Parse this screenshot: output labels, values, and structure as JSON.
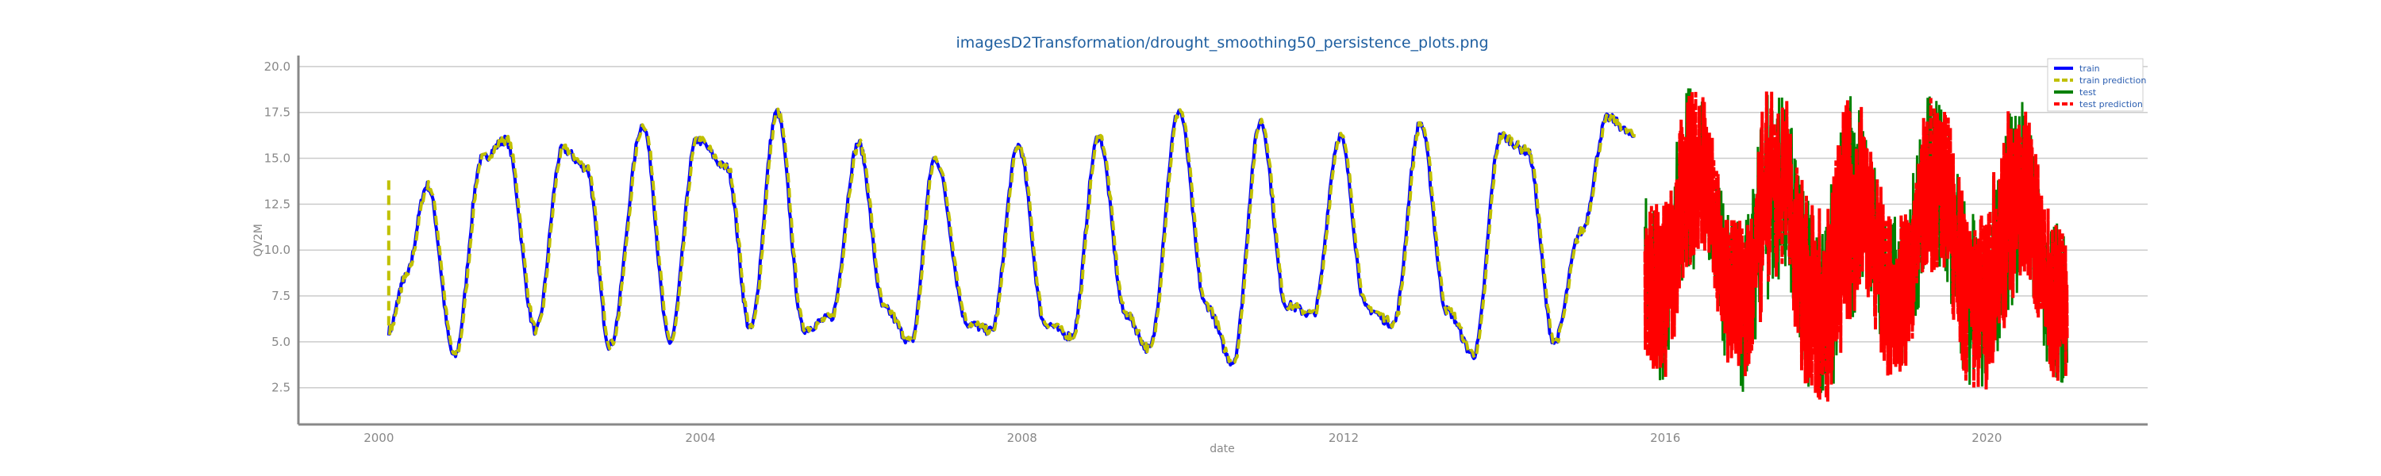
{
  "chart_data": {
    "type": "line",
    "title": "imagesD2Transformation/drought_smoothing50_persistence_plots.png",
    "xlabel": "date",
    "ylabel": "QV2M",
    "xlim": [
      "1999-01-01",
      "2022-01-01"
    ],
    "ylim": [
      0.5,
      20.6
    ],
    "x_ticks": [
      "2000",
      "2004",
      "2008",
      "2012",
      "2016",
      "2020"
    ],
    "y_ticks": [
      "2.5",
      "5.0",
      "7.5",
      "10.0",
      "12.5",
      "15.0",
      "17.5",
      "20.0"
    ],
    "grid": "horizontal",
    "legend_position": "top-right",
    "colors": {
      "train": "#0000ff",
      "train_prediction": "#c0c000",
      "test": "#008000",
      "test_prediction": "#ff0000"
    },
    "series": [
      {
        "name": "train",
        "style": "solid",
        "dates": [
          "2000-02-15",
          "2000-05-01",
          "2000-08-10",
          "2000-12-10",
          "2001-04-15",
          "2001-08-01",
          "2001-12-15",
          "2002-04-15",
          "2002-08-01",
          "2002-11-15",
          "2003-04-15",
          "2003-08-15",
          "2003-12-15",
          "2004-05-01",
          "2004-08-15",
          "2004-12-15",
          "2005-04-15",
          "2005-08-15",
          "2005-12-20",
          "2006-04-15",
          "2006-08-15",
          "2006-12-01",
          "2007-05-01",
          "2007-08-15",
          "2007-12-15",
          "2008-04-15",
          "2008-08-15",
          "2008-12-15",
          "2009-04-15",
          "2009-08-01",
          "2009-12-15",
          "2010-04-15",
          "2010-08-15",
          "2010-12-20",
          "2011-04-15",
          "2011-08-15",
          "2011-12-15",
          "2012-04-15",
          "2012-08-15",
          "2012-12-15",
          "2013-04-15",
          "2013-08-15",
          "2013-12-15",
          "2014-04-15",
          "2014-08-15",
          "2014-12-15",
          "2015-04-15",
          "2015-08-15"
        ],
        "values": [
          5.6,
          8.5,
          13.5,
          4.2,
          15,
          16,
          5.6,
          15.5,
          14.5,
          4.8,
          16.8,
          5.0,
          16.0,
          14.5,
          5.7,
          17.5,
          5.7,
          6.3,
          15.8,
          6.8,
          5.0,
          15.0,
          6.0,
          5.6,
          15.7,
          6.0,
          5.3,
          16.2,
          6.5,
          4.6,
          17.6,
          7.0,
          3.9,
          17.0,
          7.0,
          6.5,
          16.2,
          6.8,
          6.0,
          16.9,
          6.7,
          4.3,
          16.2,
          15.4,
          5.0,
          11.0,
          17.2,
          16.2
        ]
      },
      {
        "name": "train prediction",
        "style": "dashed",
        "dates": [
          "2000-02-15",
          "2000-02-15",
          "2000-05-01",
          "2000-08-10",
          "2000-12-10",
          "2001-04-15",
          "2001-08-01",
          "2001-12-15",
          "2002-04-15",
          "2002-08-01",
          "2002-11-15",
          "2003-04-15",
          "2003-08-15",
          "2003-12-15",
          "2004-05-01",
          "2004-08-15",
          "2004-12-15",
          "2005-04-15",
          "2005-08-15",
          "2005-12-20",
          "2006-04-15",
          "2006-08-15",
          "2006-12-01",
          "2007-05-01",
          "2007-08-15",
          "2007-12-15",
          "2008-04-15",
          "2008-08-15",
          "2008-12-15",
          "2009-04-15",
          "2009-08-01",
          "2009-12-15",
          "2010-04-15",
          "2010-08-15",
          "2010-12-20",
          "2011-04-15",
          "2011-08-15",
          "2011-12-15",
          "2012-04-15",
          "2012-08-15",
          "2012-12-15",
          "2013-04-15",
          "2013-08-15",
          "2013-12-15",
          "2014-04-15",
          "2014-08-15",
          "2014-12-15",
          "2015-04-15",
          "2015-08-15"
        ],
        "values": [
          13.8,
          5.6,
          8.5,
          13.5,
          4.2,
          15,
          16,
          5.6,
          15.5,
          14.5,
          4.8,
          16.8,
          5.0,
          16.0,
          14.5,
          5.7,
          17.5,
          5.7,
          6.3,
          15.8,
          6.8,
          5.0,
          15.0,
          6.0,
          5.6,
          15.7,
          6.0,
          5.3,
          16.2,
          6.5,
          4.6,
          17.6,
          7.0,
          3.9,
          17.0,
          7.0,
          6.5,
          16.2,
          6.8,
          6.0,
          16.9,
          6.7,
          4.3,
          16.2,
          15.4,
          5.0,
          11.0,
          17.2,
          16.2
        ]
      },
      {
        "name": "test",
        "style": "solid",
        "start": "2015-10-01",
        "end": "2021-01-01",
        "envelope_dates": [
          "2015-10-01",
          "2016-01-01",
          "2016-04-01",
          "2016-07-01",
          "2016-10-01",
          "2017-01-01",
          "2017-04-01",
          "2017-07-01",
          "2017-10-01",
          "2018-01-01",
          "2018-04-01",
          "2018-07-01",
          "2018-10-01",
          "2019-01-01",
          "2019-04-01",
          "2019-07-01",
          "2019-10-01",
          "2020-01-01",
          "2020-04-01",
          "2020-07-01",
          "2020-10-01",
          "2021-01-01"
        ],
        "envelope_low": [
          4.0,
          2.5,
          8.0,
          10.0,
          4.0,
          2.0,
          7.0,
          9.0,
          2.0,
          1.2,
          5.0,
          8.0,
          3.0,
          3.5,
          9.0,
          8.0,
          2.5,
          2.3,
          6.0,
          9.0,
          3.5,
          2.0
        ],
        "envelope_high": [
          13.0,
          12.5,
          19.0,
          18.5,
          12.0,
          11.5,
          19.0,
          18.5,
          13.0,
          12.0,
          18.5,
          18.0,
          12.0,
          12.5,
          18.5,
          18.0,
          12.0,
          12.0,
          18.5,
          18.0,
          12.5,
          10.5
        ]
      },
      {
        "name": "test prediction",
        "style": "dashed",
        "start": "2015-10-01",
        "end": "2021-01-01",
        "envelope_dates": [
          "2015-10-01",
          "2016-01-01",
          "2016-04-01",
          "2016-07-01",
          "2016-10-01",
          "2017-01-01",
          "2017-04-01",
          "2017-07-01",
          "2017-10-01",
          "2018-01-01",
          "2018-04-01",
          "2018-07-01",
          "2018-10-01",
          "2019-01-01",
          "2019-04-01",
          "2019-07-01",
          "2019-10-01",
          "2020-01-01",
          "2020-04-01",
          "2020-07-01",
          "2020-10-01",
          "2021-01-01"
        ],
        "envelope_low": [
          4.0,
          2.5,
          8.0,
          10.0,
          4.0,
          2.0,
          7.0,
          9.0,
          2.0,
          1.2,
          5.0,
          8.0,
          3.0,
          3.5,
          9.0,
          8.0,
          2.5,
          2.3,
          6.0,
          9.0,
          3.5,
          2.0
        ],
        "envelope_high": [
          13.0,
          12.5,
          19.0,
          18.5,
          12.0,
          11.5,
          19.0,
          18.5,
          13.0,
          12.0,
          18.5,
          18.0,
          12.0,
          12.5,
          18.5,
          18.0,
          12.0,
          12.0,
          18.5,
          18.0,
          12.5,
          10.5
        ]
      }
    ],
    "legend": [
      "train",
      "train prediction",
      "test",
      "test prediction"
    ]
  }
}
